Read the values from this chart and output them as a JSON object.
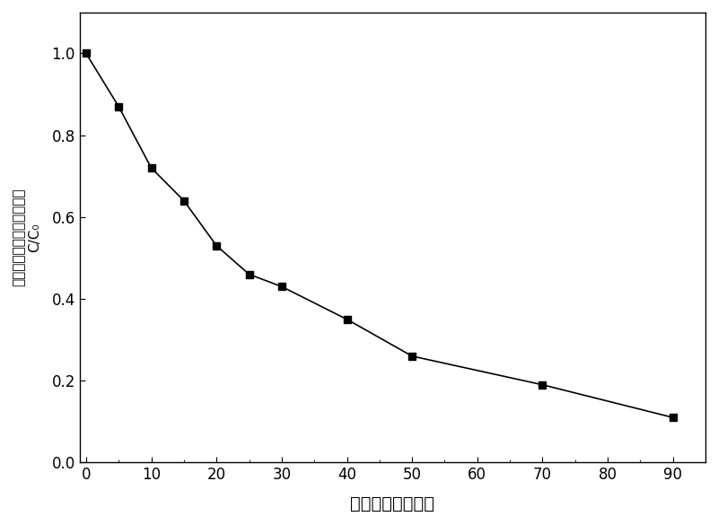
{
  "x": [
    0,
    5,
    10,
    15,
    20,
    25,
    30,
    40,
    50,
    70,
    90
  ],
  "y": [
    1.0,
    0.87,
    0.72,
    0.64,
    0.53,
    0.46,
    0.43,
    0.35,
    0.26,
    0.19,
    0.11
  ],
  "xlabel": "反应时间（分钟）",
  "ylabel_top": "（当前浓度与初始浓度比）",
  "ylabel_bottom": "C/C₀",
  "xlim": [
    -1,
    95
  ],
  "ylim": [
    0.0,
    1.1
  ],
  "xticks": [
    0,
    10,
    20,
    30,
    40,
    50,
    60,
    70,
    80,
    90
  ],
  "yticks": [
    0.0,
    0.2,
    0.4,
    0.6,
    0.8,
    1.0
  ],
  "line_color": "#000000",
  "marker": "s",
  "markersize": 6,
  "linewidth": 1.2,
  "background_color": "#ffffff",
  "grid": false,
  "xlabel_fontsize": 14,
  "ylabel_fontsize": 11,
  "tick_fontsize": 12
}
